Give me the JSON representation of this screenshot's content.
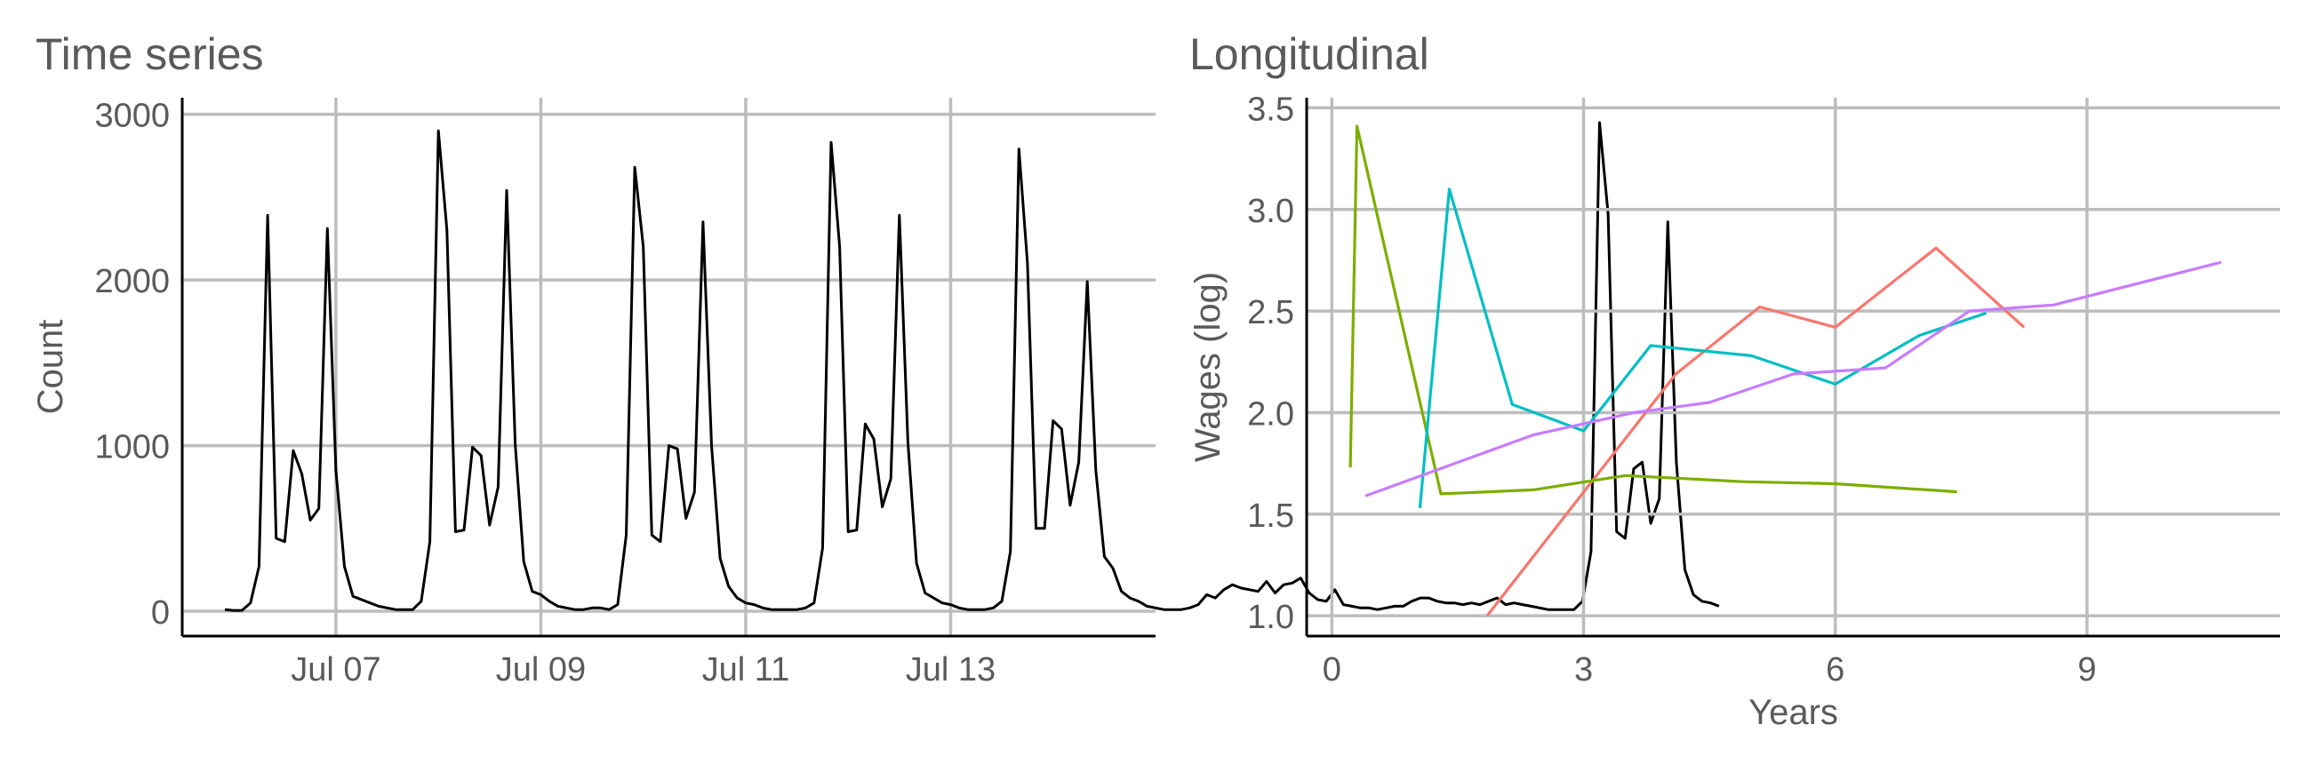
{
  "chart_data": [
    {
      "type": "line",
      "title": "Time series",
      "xlabel": "",
      "ylabel": "Count",
      "x_unit": "day",
      "xlim": [
        "2017-07-05T12:00",
        "2017-07-15T00:00"
      ],
      "ylim": [
        -150,
        3100
      ],
      "y_ticks": [
        0,
        1000,
        2000,
        3000
      ],
      "x_ticks": [
        {
          "date": "2017-07-07T00:00",
          "label": "Jul 07"
        },
        {
          "date": "2017-07-09T00:00",
          "label": "Jul 09"
        },
        {
          "date": "2017-07-11T00:00",
          "label": "Jul 11"
        },
        {
          "date": "2017-07-13T00:00",
          "label": "Jul 13"
        }
      ],
      "grid": true,
      "line_color": "#000000",
      "series": [
        {
          "start": "2017-07-05T22:00",
          "step_hours": 2,
          "values": [
            10,
            5,
            5,
            50,
            270,
            2390,
            440,
            420,
            970,
            830,
            550,
            620,
            2310,
            850,
            270,
            90,
            70,
            50,
            30,
            20,
            10,
            10,
            10,
            60,
            420,
            2900,
            2300,
            480,
            490,
            990,
            940,
            520,
            750,
            2540,
            1010,
            300,
            120,
            100,
            60,
            30,
            20,
            10,
            10,
            20,
            20,
            10,
            40,
            460,
            2680,
            2200,
            460,
            420,
            1000,
            980,
            560,
            720,
            2350,
            1000,
            320,
            150,
            80,
            50,
            40,
            20,
            10,
            10,
            10,
            10,
            20,
            50,
            380,
            2830,
            2200,
            480,
            490,
            1130,
            1040,
            630,
            800,
            2390,
            1020,
            290,
            110,
            80,
            50,
            40,
            20,
            10,
            10,
            10,
            20,
            60,
            360,
            2790,
            2100,
            500,
            500,
            1150,
            1100,
            640,
            900,
            1990,
            850,
            330,
            260,
            120,
            80,
            60,
            30,
            20,
            10,
            10,
            10,
            20,
            40,
            100,
            80,
            130,
            160,
            140,
            130,
            120,
            180,
            110,
            160,
            170,
            200,
            110,
            70,
            60,
            130,
            40,
            30,
            20,
            20,
            10,
            20,
            30,
            30,
            60,
            80,
            80,
            60,
            50,
            50,
            40,
            50,
            40,
            60,
            80,
            40,
            50,
            40,
            30,
            20,
            10,
            10,
            10,
            10,
            60,
            360,
            2950,
            2400,
            480,
            440,
            860,
            900,
            530,
            680,
            2350,
            900,
            250,
            100,
            60,
            50,
            30
          ]
        }
      ]
    },
    {
      "type": "line",
      "title": "Longitudinal",
      "xlabel": "Years",
      "ylabel": "Wages (log)",
      "xlim": [
        -0.3,
        11.3
      ],
      "ylim": [
        0.9,
        3.55
      ],
      "x_ticks": [
        0,
        3,
        6,
        9
      ],
      "y_ticks": [
        1.0,
        1.5,
        2.0,
        2.5,
        3.0,
        3.5
      ],
      "y_tick_labels": [
        "1.0",
        "1.5",
        "2.0",
        "2.5",
        "3.0",
        "3.5"
      ],
      "grid": true,
      "series": [
        {
          "color": "#f8766d",
          "x": [
            1.85,
            4.1,
            5.1,
            6.0,
            7.2,
            8.25
          ],
          "y": [
            1.0,
            2.19,
            2.52,
            2.42,
            2.81,
            2.42
          ]
        },
        {
          "color": "#7cae00",
          "x": [
            0.22,
            0.3,
            1.3,
            2.4,
            3.5,
            4.9,
            6.0,
            7.45
          ],
          "y": [
            1.73,
            3.41,
            1.6,
            1.62,
            1.69,
            1.66,
            1.65,
            1.61
          ]
        },
        {
          "color": "#00bfc4",
          "x": [
            1.05,
            1.4,
            2.15,
            3.0,
            3.8,
            5.0,
            6.0,
            7.0,
            7.8
          ],
          "y": [
            1.53,
            3.1,
            2.04,
            1.91,
            2.33,
            2.28,
            2.14,
            2.38,
            2.49
          ]
        },
        {
          "color": "#c77cff",
          "x": [
            0.4,
            2.4,
            3.6,
            4.5,
            5.5,
            6.6,
            7.6,
            8.6,
            10.6
          ],
          "y": [
            1.59,
            1.89,
            2.0,
            2.05,
            2.19,
            2.22,
            2.5,
            2.53,
            2.74
          ]
        }
      ]
    }
  ]
}
